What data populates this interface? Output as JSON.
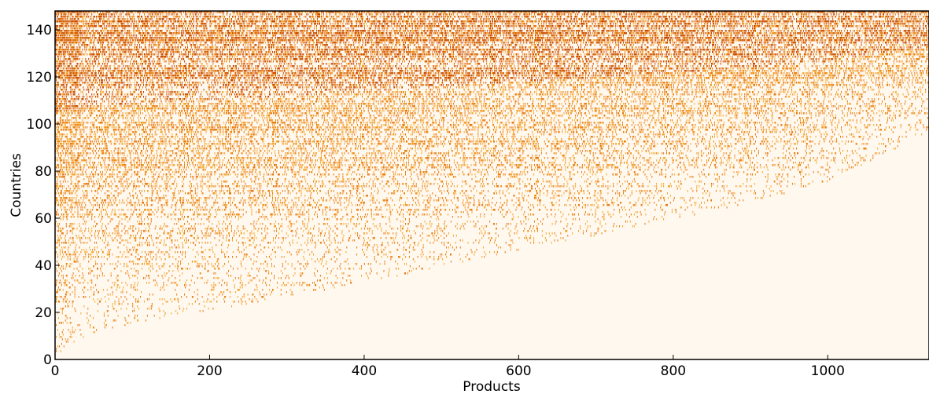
{
  "chart_data": {
    "type": "heatmap",
    "title": "",
    "xlabel": "Products",
    "ylabel": "Countries",
    "xlim": [
      0,
      1131
    ],
    "ylim": [
      0,
      148
    ],
    "x_ticks": [
      "0",
      "200",
      "400",
      "600",
      "800",
      "1000"
    ],
    "y_ticks": [
      "0",
      "20",
      "40",
      "60",
      "80",
      "100",
      "120",
      "140"
    ],
    "grid": false,
    "legend": "none",
    "colors": {
      "background": "#fff8ef",
      "low": "#f4a62a",
      "mid": "#e8790f",
      "high": "#c84a00"
    },
    "description_of_pattern": "binary country-product matrix; countries (rows) ranked by diversity, products (columns) ranked by ubiquity; filled cells lie above a boundary rising from about 0 at product 0 to about 20 at product 200, 40 at product 500, 60 at product 800 and 96 at product 1131",
    "boundary": {
      "x": [
        0,
        20,
        60,
        120,
        200,
        300,
        400,
        500,
        600,
        700,
        800,
        900,
        1000,
        1131
      ],
      "y": [
        0,
        6,
        12,
        16,
        20,
        26,
        32,
        39,
        46,
        52,
        59,
        66,
        75,
        96
      ]
    },
    "rows": 148,
    "cols": 1131
  }
}
